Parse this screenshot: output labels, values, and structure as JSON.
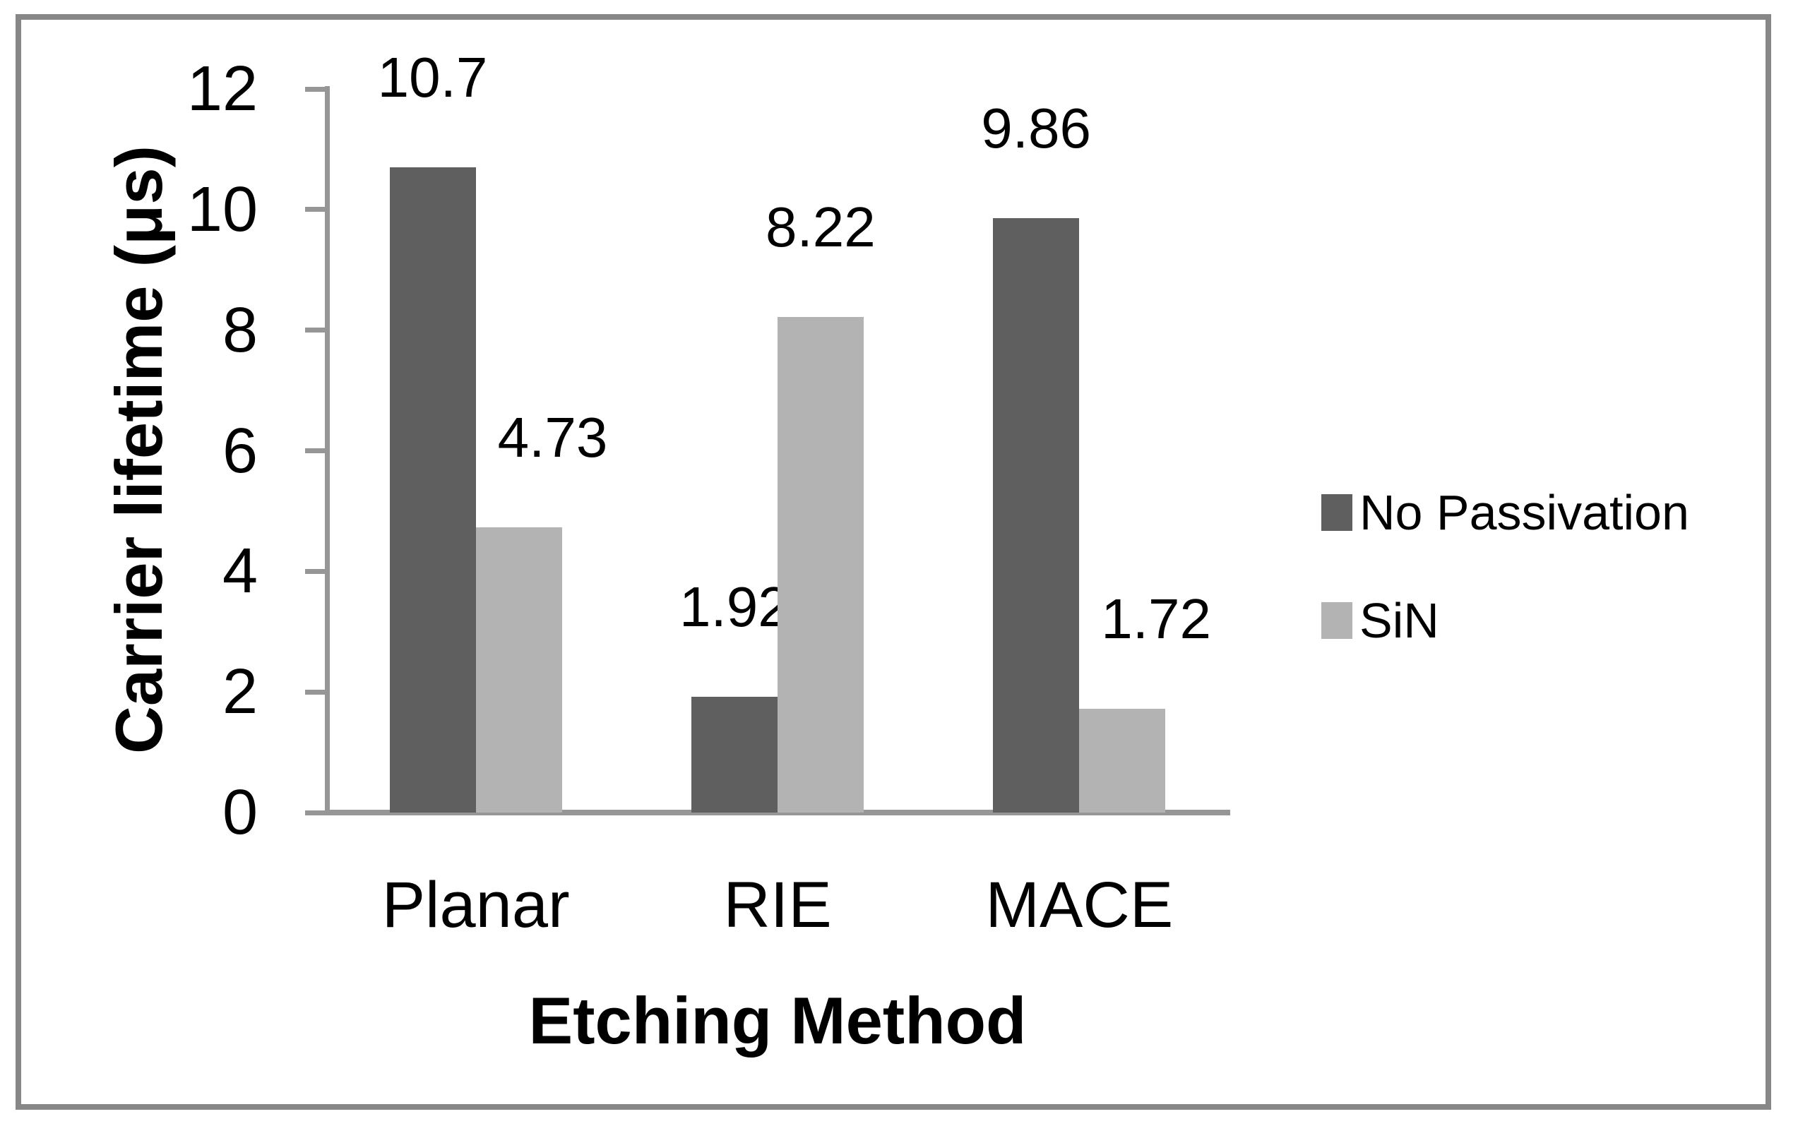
{
  "figure": {
    "border_color": "#878787",
    "background_color": "#ffffff",
    "text_color": "#000000"
  },
  "chart_data": {
    "type": "bar",
    "title": "",
    "categories": [
      "Planar",
      "RIE",
      "MACE"
    ],
    "series": [
      {
        "name": "No Passivation",
        "color": "#5f5f5f",
        "values": [
          10.7,
          1.92,
          9.86
        ],
        "labels": [
          "10.7",
          "1.92",
          "9.86"
        ]
      },
      {
        "name": "SiN",
        "color": "#b3b3b3",
        "values": [
          4.73,
          8.22,
          1.72
        ],
        "labels": [
          "4.73",
          "8.22",
          "1.72"
        ]
      }
    ],
    "xlabel": "Etching Method",
    "ylabel": "Carrier lifetime (μs)",
    "ylim": [
      0,
      12
    ],
    "yticks": [
      "0",
      "2",
      "4",
      "6",
      "8",
      "10",
      "12"
    ],
    "grid": false,
    "legend_position": "right",
    "axis_color": "#969696",
    "label_dx": [
      [
        0,
        0,
        0
      ],
      [
        48,
        0,
        48
      ]
    ]
  }
}
